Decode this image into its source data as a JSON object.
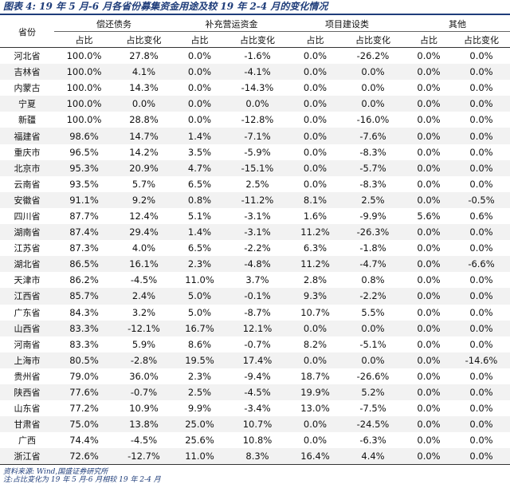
{
  "title": "图表 4:  19 年 5 月-6 月各省份募集资金用途及较 19 年 2-4 月的变化情况",
  "headers": {
    "province": "省份",
    "groups": [
      "偿还债务",
      "补充营运资金",
      "项目建设类",
      "其他"
    ],
    "sub": [
      "占比",
      "占比变化",
      "占比",
      "占比变化",
      "占比",
      "占比变化",
      "占比",
      "占比变化"
    ]
  },
  "rows": [
    [
      "河北省",
      "100.0%",
      "27.8%",
      "0.0%",
      "-1.6%",
      "0.0%",
      "-26.2%",
      "0.0%",
      "0.0%"
    ],
    [
      "吉林省",
      "100.0%",
      "4.1%",
      "0.0%",
      "-4.1%",
      "0.0%",
      "0.0%",
      "0.0%",
      "0.0%"
    ],
    [
      "内蒙古",
      "100.0%",
      "14.3%",
      "0.0%",
      "-14.3%",
      "0.0%",
      "0.0%",
      "0.0%",
      "0.0%"
    ],
    [
      "宁夏",
      "100.0%",
      "0.0%",
      "0.0%",
      "0.0%",
      "0.0%",
      "0.0%",
      "0.0%",
      "0.0%"
    ],
    [
      "新疆",
      "100.0%",
      "28.8%",
      "0.0%",
      "-12.8%",
      "0.0%",
      "-16.0%",
      "0.0%",
      "0.0%"
    ],
    [
      "福建省",
      "98.6%",
      "14.7%",
      "1.4%",
      "-7.1%",
      "0.0%",
      "-7.6%",
      "0.0%",
      "0.0%"
    ],
    [
      "重庆市",
      "96.5%",
      "14.2%",
      "3.5%",
      "-5.9%",
      "0.0%",
      "-8.3%",
      "0.0%",
      "0.0%"
    ],
    [
      "北京市",
      "95.3%",
      "20.9%",
      "4.7%",
      "-15.1%",
      "0.0%",
      "-5.7%",
      "0.0%",
      "0.0%"
    ],
    [
      "云南省",
      "93.5%",
      "5.7%",
      "6.5%",
      "2.5%",
      "0.0%",
      "-8.3%",
      "0.0%",
      "0.0%"
    ],
    [
      "安徽省",
      "91.1%",
      "9.2%",
      "0.8%",
      "-11.2%",
      "8.1%",
      "2.5%",
      "0.0%",
      "-0.5%"
    ],
    [
      "四川省",
      "87.7%",
      "12.4%",
      "5.1%",
      "-3.1%",
      "1.6%",
      "-9.9%",
      "5.6%",
      "0.6%"
    ],
    [
      "湖南省",
      "87.4%",
      "29.4%",
      "1.4%",
      "-3.1%",
      "11.2%",
      "-26.3%",
      "0.0%",
      "0.0%"
    ],
    [
      "江苏省",
      "87.3%",
      "4.0%",
      "6.5%",
      "-2.2%",
      "6.3%",
      "-1.8%",
      "0.0%",
      "0.0%"
    ],
    [
      "湖北省",
      "86.5%",
      "16.1%",
      "2.3%",
      "-4.8%",
      "11.2%",
      "-4.7%",
      "0.0%",
      "-6.6%"
    ],
    [
      "天津市",
      "86.2%",
      "-4.5%",
      "11.0%",
      "3.7%",
      "2.8%",
      "0.8%",
      "0.0%",
      "0.0%"
    ],
    [
      "江西省",
      "85.7%",
      "2.4%",
      "5.0%",
      "-0.1%",
      "9.3%",
      "-2.2%",
      "0.0%",
      "0.0%"
    ],
    [
      "广东省",
      "84.3%",
      "3.2%",
      "5.0%",
      "-8.7%",
      "10.7%",
      "5.5%",
      "0.0%",
      "0.0%"
    ],
    [
      "山西省",
      "83.3%",
      "-12.1%",
      "16.7%",
      "12.1%",
      "0.0%",
      "0.0%",
      "0.0%",
      "0.0%"
    ],
    [
      "河南省",
      "83.3%",
      "5.9%",
      "8.6%",
      "-0.7%",
      "8.2%",
      "-5.1%",
      "0.0%",
      "0.0%"
    ],
    [
      "上海市",
      "80.5%",
      "-2.8%",
      "19.5%",
      "17.4%",
      "0.0%",
      "0.0%",
      "0.0%",
      "-14.6%"
    ],
    [
      "贵州省",
      "79.0%",
      "36.0%",
      "2.3%",
      "-9.4%",
      "18.7%",
      "-26.6%",
      "0.0%",
      "0.0%"
    ],
    [
      "陕西省",
      "77.6%",
      "-0.7%",
      "2.5%",
      "-4.5%",
      "19.9%",
      "5.2%",
      "0.0%",
      "0.0%"
    ],
    [
      "山东省",
      "77.2%",
      "10.9%",
      "9.9%",
      "-3.4%",
      "13.0%",
      "-7.5%",
      "0.0%",
      "0.0%"
    ],
    [
      "甘肃省",
      "75.0%",
      "13.8%",
      "25.0%",
      "10.7%",
      "0.0%",
      "-24.5%",
      "0.0%",
      "0.0%"
    ],
    [
      "广西",
      "74.4%",
      "-4.5%",
      "25.6%",
      "10.8%",
      "0.0%",
      "-6.3%",
      "0.0%",
      "0.0%"
    ],
    [
      "浙江省",
      "72.6%",
      "-12.7%",
      "11.0%",
      "8.3%",
      "16.4%",
      "4.4%",
      "0.0%",
      "0.0%"
    ]
  ],
  "notes": {
    "source": "资料来源: Wind,国盛证券研究所",
    "footnote": "注:占比变化为 19 年 5 月-6 月相较 19 年 2-4 月"
  },
  "colors": {
    "accent": "#1f3d7a",
    "stripe": "#f2f2f2"
  }
}
